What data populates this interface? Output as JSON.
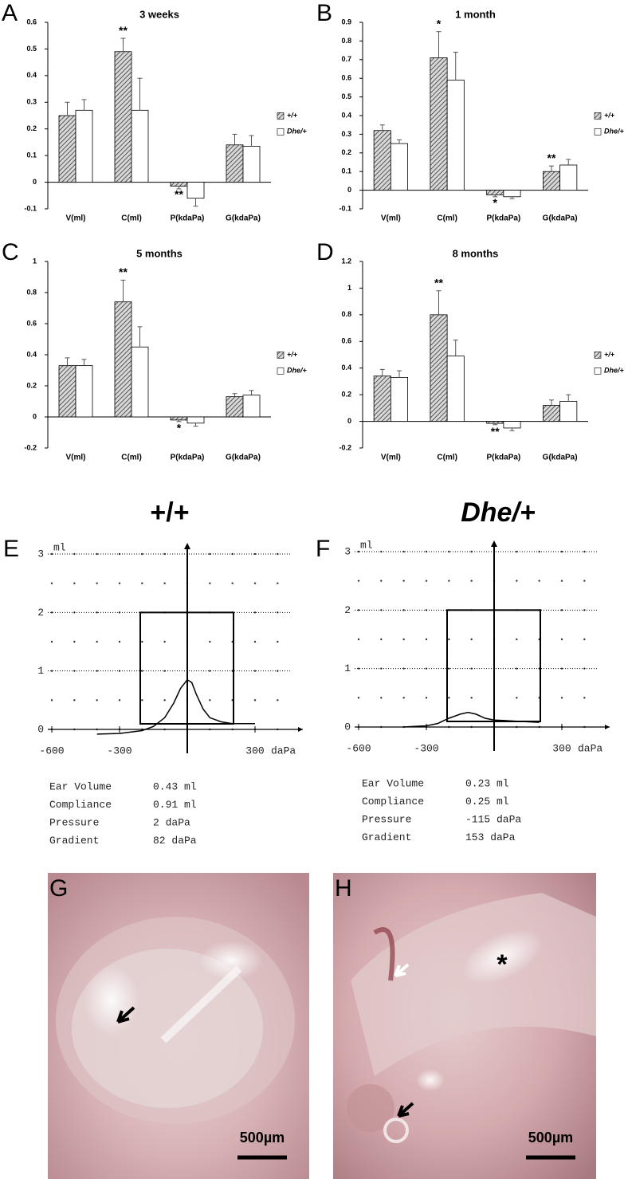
{
  "chart_data": [
    {
      "type": "bar",
      "label": "A",
      "title": "3 weeks",
      "categories": [
        "V(ml)",
        "C(ml)",
        "P(kdaPa)",
        "G(kdaPa)"
      ],
      "ylim": [
        -0.1,
        0.6
      ],
      "yticks": [
        -0.1,
        0,
        0.1,
        0.2,
        0.3,
        0.4,
        0.5,
        0.6
      ],
      "series": [
        {
          "name": "+/+",
          "color": "#555555",
          "pattern": "hatch",
          "values": [
            0.25,
            0.49,
            -0.015,
            0.14
          ],
          "errors": [
            0.05,
            0.05,
            0.01,
            0.04
          ],
          "markers": [
            null,
            "**",
            "**",
            null
          ]
        },
        {
          "name": "Dhe/+",
          "color": "#ffffff",
          "values": [
            0.27,
            0.27,
            -0.06,
            0.135
          ],
          "errors": [
            0.04,
            0.12,
            0.03,
            0.04
          ],
          "markers": [
            null,
            null,
            null,
            null
          ]
        }
      ]
    },
    {
      "type": "bar",
      "label": "B",
      "title": "1 month",
      "categories": [
        "V(ml)",
        "C(ml)",
        "P(kdaPa)",
        "G(kdaPa)"
      ],
      "ylim": [
        -0.1,
        0.9
      ],
      "yticks": [
        -0.1,
        0,
        0.1,
        0.2,
        0.3,
        0.4,
        0.5,
        0.6,
        0.7,
        0.8,
        0.9
      ],
      "series": [
        {
          "name": "+/+",
          "color": "#555555",
          "pattern": "hatch",
          "values": [
            0.32,
            0.71,
            -0.025,
            0.1
          ],
          "errors": [
            0.03,
            0.14,
            0.01,
            0.03
          ],
          "markers": [
            null,
            "*",
            "*",
            "**"
          ]
        },
        {
          "name": "Dhe/+",
          "color": "#ffffff",
          "values": [
            0.25,
            0.59,
            -0.035,
            0.135
          ],
          "errors": [
            0.02,
            0.15,
            0.01,
            0.03
          ],
          "markers": [
            null,
            null,
            null,
            null
          ]
        }
      ]
    },
    {
      "type": "bar",
      "label": "C",
      "title": "5 months",
      "categories": [
        "V(ml)",
        "C(ml)",
        "P(kdaPa)",
        "G(kdaPa)"
      ],
      "ylim": [
        -0.2,
        1
      ],
      "yticks": [
        -0.2,
        0,
        0.2,
        0.4,
        0.6,
        0.8,
        1
      ],
      "series": [
        {
          "name": "+/+",
          "color": "#555555",
          "pattern": "hatch",
          "values": [
            0.33,
            0.74,
            -0.02,
            0.13
          ],
          "errors": [
            0.05,
            0.14,
            0.01,
            0.02
          ],
          "markers": [
            null,
            "**",
            "*",
            null
          ]
        },
        {
          "name": "Dhe/+",
          "color": "#ffffff",
          "values": [
            0.33,
            0.45,
            -0.04,
            0.14
          ],
          "errors": [
            0.04,
            0.13,
            0.02,
            0.03
          ],
          "markers": [
            null,
            null,
            null,
            null
          ]
        }
      ]
    },
    {
      "type": "bar",
      "label": "D",
      "title": "8 months",
      "categories": [
        "V(ml)",
        "C(ml)",
        "P(kdaPa)",
        "G(kdaPa)"
      ],
      "ylim": [
        -0.2,
        1.2
      ],
      "yticks": [
        -0.2,
        0,
        0.2,
        0.4,
        0.6,
        0.8,
        1,
        1.2
      ],
      "series": [
        {
          "name": "+/+",
          "color": "#555555",
          "pattern": "hatch",
          "values": [
            0.34,
            0.8,
            -0.015,
            0.12
          ],
          "errors": [
            0.05,
            0.18,
            0.01,
            0.04
          ],
          "markers": [
            null,
            "**",
            "**",
            null
          ]
        },
        {
          "name": "Dhe/+",
          "color": "#ffffff",
          "values": [
            0.33,
            0.49,
            -0.05,
            0.15
          ],
          "errors": [
            0.05,
            0.12,
            0.02,
            0.05
          ],
          "markers": [
            null,
            null,
            null,
            null
          ]
        }
      ]
    },
    {
      "type": "line",
      "label": "E",
      "title": "+/+",
      "y_label": "ml",
      "x_label": "daPa",
      "xlim": [
        -600,
        300
      ],
      "xticks": [
        -600,
        -300,
        300
      ],
      "ylim": [
        0,
        3
      ],
      "yticks": [
        0,
        1,
        2,
        3
      ],
      "x": [
        -400,
        -300,
        -200,
        -150,
        -100,
        -60,
        -30,
        0,
        20,
        40,
        70,
        100,
        150,
        200,
        300
      ],
      "values": [
        -0.08,
        -0.07,
        -0.02,
        0.05,
        0.2,
        0.45,
        0.7,
        0.85,
        0.8,
        0.6,
        0.35,
        0.2,
        0.13,
        0.1,
        0.1
      ],
      "readout": [
        [
          "Ear Volume",
          "0.43 ml"
        ],
        [
          "Compliance",
          "0.91 ml"
        ],
        [
          "Pressure",
          "2 daPa"
        ],
        [
          "Gradient",
          "82 daPa"
        ]
      ]
    },
    {
      "type": "line",
      "label": "F",
      "title": "Dhe/+",
      "y_label": "ml",
      "x_label": "daPa",
      "xlim": [
        -600,
        300
      ],
      "xticks": [
        -600,
        -300,
        300
      ],
      "ylim": [
        0,
        3
      ],
      "yticks": [
        0,
        1,
        2,
        3
      ],
      "x": [
        -400,
        -300,
        -250,
        -200,
        -150,
        -115,
        -80,
        -40,
        0,
        100,
        200
      ],
      "values": [
        0,
        0.02,
        0.06,
        0.15,
        0.22,
        0.25,
        0.22,
        0.15,
        0.12,
        0.1,
        0.08
      ],
      "readout": [
        [
          "Ear Volume",
          "0.23 ml"
        ],
        [
          "Compliance",
          "0.25 ml"
        ],
        [
          "Pressure",
          "-115 daPa"
        ],
        [
          "Gradient",
          "153 daPa"
        ]
      ]
    }
  ],
  "photos": [
    {
      "label": "G",
      "scale_label": "500µm"
    },
    {
      "label": "H",
      "scale_label": "500µm",
      "annotation": "*"
    }
  ]
}
